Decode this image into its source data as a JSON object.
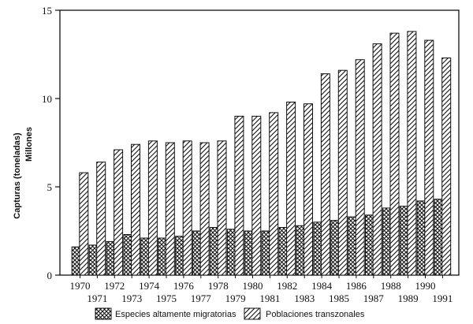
{
  "chart_data": {
    "type": "bar",
    "ylabel_line1": "Capturas (toneladas)",
    "ylabel_line2": "Millones",
    "xlabel": "",
    "ylim": [
      0,
      15
    ],
    "yticks": [
      0,
      5,
      10,
      15
    ],
    "grid": false,
    "legend_position": "bottom",
    "categories": [
      "1970",
      "1971",
      "1972",
      "1973",
      "1974",
      "1975",
      "1976",
      "1977",
      "1978",
      "1979",
      "1980",
      "1981",
      "1982",
      "1983",
      "1984",
      "1985",
      "1986",
      "1987",
      "1988",
      "1989",
      "1990",
      "1991"
    ],
    "series": [
      {
        "name": "Especies altamente migratorias",
        "pattern": "crosshatch",
        "values": [
          1.6,
          1.7,
          1.9,
          2.3,
          2.1,
          2.1,
          2.2,
          2.5,
          2.7,
          2.6,
          2.5,
          2.5,
          2.7,
          2.8,
          3.0,
          3.1,
          3.3,
          3.4,
          3.8,
          3.9,
          4.2,
          4.3
        ]
      },
      {
        "name": "Poblaciones transzonales",
        "pattern": "diagonal",
        "values": [
          5.8,
          6.4,
          7.1,
          7.4,
          7.6,
          7.5,
          7.6,
          7.5,
          7.6,
          9.0,
          9.0,
          9.2,
          9.8,
          9.7,
          11.4,
          11.6,
          12.2,
          13.1,
          13.7,
          13.8,
          13.3,
          12.3
        ]
      }
    ]
  }
}
